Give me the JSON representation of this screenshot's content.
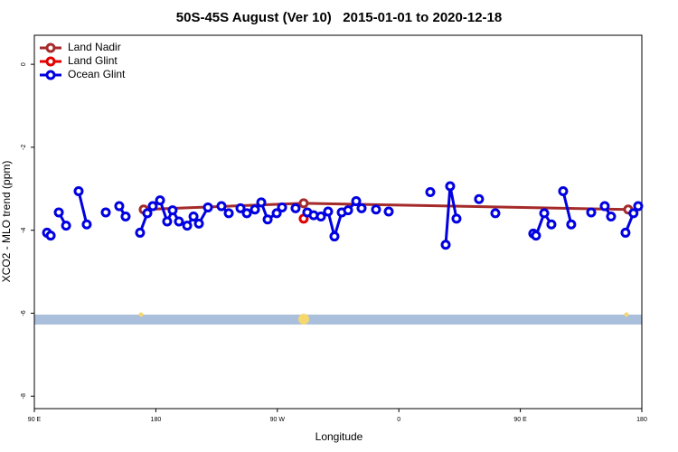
{
  "chart_data": {
    "type": "line",
    "title": "50S-45S August (Ver 10)   2015-01-01 to 2020-12-18",
    "xlabel": "Longitude",
    "ylabel": "XCO2 - MLO trend (ppm)",
    "xlim": [
      90,
      540
    ],
    "ylim": [
      -8.3,
      0.7
    ],
    "xticks": [
      {
        "value": 90,
        "label": "90 E"
      },
      {
        "value": 180,
        "label": "180"
      },
      {
        "value": 270,
        "label": "90 W"
      },
      {
        "value": 360,
        "label": "0"
      },
      {
        "value": 450,
        "label": "90 E"
      },
      {
        "value": 540,
        "label": "180"
      }
    ],
    "yticks": [
      0,
      -2,
      -4,
      -6,
      -8
    ],
    "legend": "upper left",
    "series": [
      {
        "name": "Land Nadir",
        "color": "#a52a2a",
        "x": [
          171.0,
          289.5,
          529.9
        ],
        "values": [
          -3.5,
          -3.35,
          -3.5
        ]
      },
      {
        "name": "Land Glint",
        "color": "#e00000",
        "x": [
          289.5
        ],
        "values": [
          -3.72
        ]
      },
      {
        "name": "Ocean Glint",
        "color": "#0000e0",
        "x": [
          99.4,
          102.1,
          null,
          108.1,
          113.5,
          null,
          122.8,
          128.8,
          null,
          142.9,
          null,
          152.9,
          157.6,
          null,
          168.3,
          173.7,
          177.7,
          183.1,
          188.4,
          192.4,
          197.1,
          203.2,
          207.9,
          211.9,
          218.6,
          null,
          228.6,
          234.0,
          null,
          242.7,
          247.4,
          253.4,
          258.1,
          262.8,
          269.5,
          273.5,
          null,
          283.5,
          null,
          292.2,
          296.9,
          302.3,
          307.6,
          312.3,
          317.7,
          322.4,
          328.4,
          332.4,
          null,
          343.1,
          null,
          352.5,
          null,
          383.3,
          null,
          394.7,
          398.0,
          402.7,
          null,
          419.4,
          null,
          431.5,
          null,
          459.6,
          461.6,
          467.7,
          473.0,
          null,
          481.7,
          487.7,
          null,
          502.5,
          null,
          512.5,
          517.2,
          null,
          527.9,
          533.8,
          537.3
        ],
        "values": [
          -4.06,
          -4.13,
          null,
          -3.57,
          -3.89,
          null,
          -3.06,
          -3.86,
          null,
          -3.57,
          null,
          -3.42,
          -3.67,
          null,
          -4.06,
          -3.59,
          -3.42,
          -3.28,
          -3.79,
          -3.52,
          -3.79,
          -3.89,
          -3.67,
          -3.84,
          -3.45,
          null,
          -3.42,
          -3.59,
          null,
          -3.47,
          -3.59,
          -3.5,
          -3.33,
          -3.74,
          -3.59,
          -3.45,
          null,
          -3.47,
          null,
          -3.57,
          -3.64,
          -3.67,
          -3.55,
          -4.15,
          -3.57,
          -3.52,
          -3.3,
          -3.47,
          null,
          -3.5,
          null,
          -3.55,
          null,
          -3.08,
          null,
          -4.35,
          -2.94,
          -3.72,
          null,
          -3.25,
          null,
          -3.59,
          null,
          -4.08,
          -4.13,
          -3.59,
          -3.86,
          null,
          -3.06,
          -3.86,
          null,
          -3.57,
          null,
          -3.42,
          -3.67,
          null,
          -4.06,
          -3.59,
          -3.42
        ]
      }
    ]
  }
}
